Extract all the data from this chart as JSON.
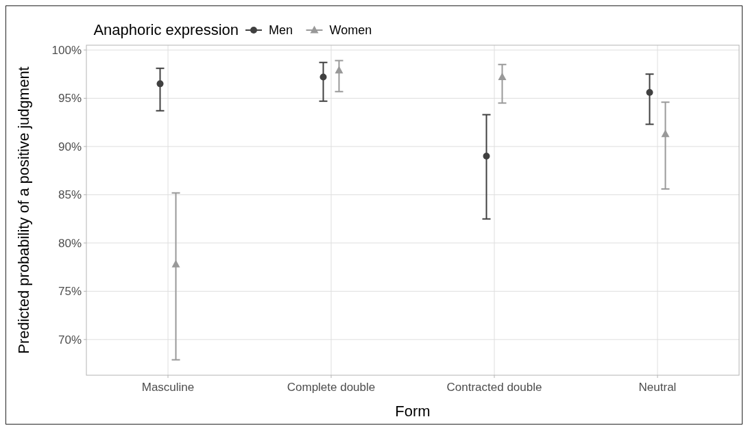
{
  "chart_data": {
    "type": "scatter",
    "xlabel": "Form",
    "ylabel": "Predicted probability of a positive judgment",
    "legend_title": "Anaphoric expression",
    "legend": "top",
    "grid": true,
    "categories": [
      "Masculine",
      "Complete double",
      "Contracted double",
      "Neutral"
    ],
    "ylim": [
      66.3,
      100.5
    ],
    "yticks": [
      {
        "value": 70,
        "label": "70%"
      },
      {
        "value": 75,
        "label": "75%"
      },
      {
        "value": 80,
        "label": "80%"
      },
      {
        "value": 85,
        "label": "85%"
      },
      {
        "value": 90,
        "label": "90%"
      },
      {
        "value": 95,
        "label": "95%"
      },
      {
        "value": 100,
        "label": "100%"
      }
    ],
    "series": [
      {
        "name": "Men",
        "color": "#404040",
        "marker": "circle",
        "values": [
          96.5,
          97.2,
          89.0,
          95.6
        ],
        "errors": [
          [
            93.7,
            98.1
          ],
          [
            94.7,
            98.7
          ],
          [
            82.5,
            93.3
          ],
          [
            92.3,
            97.5
          ]
        ]
      },
      {
        "name": "Women",
        "color": "#999999",
        "marker": "triangle",
        "values": [
          77.8,
          97.9,
          97.2,
          91.3
        ],
        "errors": [
          [
            67.9,
            85.2
          ],
          [
            95.7,
            98.9
          ],
          [
            94.5,
            98.5
          ],
          [
            85.6,
            94.6
          ]
        ]
      }
    ]
  }
}
